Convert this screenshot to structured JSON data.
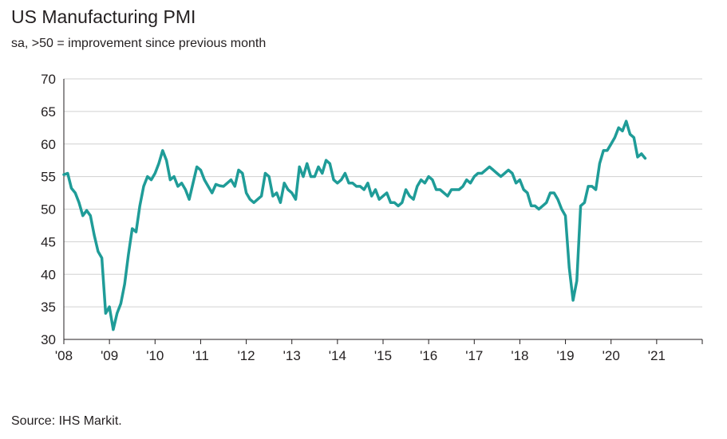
{
  "chart_data": {
    "type": "line",
    "title": "US Manufacturing PMI",
    "subtitle": "sa, >50 = improvement since previous month",
    "source": "Source: IHS Markit.",
    "xlabel": "",
    "ylabel": "",
    "ylim": [
      30,
      70
    ],
    "yticks": [
      30,
      35,
      40,
      45,
      50,
      55,
      60,
      65,
      70
    ],
    "xlim": [
      2008,
      2022
    ],
    "xticks": [
      {
        "value": 2008,
        "label": "'08"
      },
      {
        "value": 2009,
        "label": "'09"
      },
      {
        "value": 2010,
        "label": "'10"
      },
      {
        "value": 2011,
        "label": "'11"
      },
      {
        "value": 2012,
        "label": "'12"
      },
      {
        "value": 2013,
        "label": "'13"
      },
      {
        "value": 2014,
        "label": "'14"
      },
      {
        "value": 2015,
        "label": "'15"
      },
      {
        "value": 2016,
        "label": "'16"
      },
      {
        "value": 2017,
        "label": "'17"
      },
      {
        "value": 2018,
        "label": "'18"
      },
      {
        "value": 2019,
        "label": "'19"
      },
      {
        "value": 2020,
        "label": "'20"
      },
      {
        "value": 2021,
        "label": "'21"
      }
    ],
    "grid": true,
    "series": [
      {
        "name": "US Manufacturing PMI",
        "color": "#1f9c98",
        "start": 2008.0,
        "step_years": 0.08333,
        "values": [
          55.3,
          55.5,
          53.2,
          52.5,
          51.0,
          49.0,
          49.8,
          49.0,
          46.0,
          43.5,
          42.5,
          34.0,
          35.0,
          31.5,
          34.0,
          35.5,
          38.5,
          43.0,
          47.0,
          46.5,
          50.5,
          53.5,
          55.0,
          54.5,
          55.5,
          57.0,
          59.0,
          57.5,
          54.5,
          55.0,
          53.5,
          54.0,
          53.0,
          51.5,
          54.0,
          56.5,
          56.0,
          54.5,
          53.5,
          52.5,
          53.8,
          53.6,
          53.5,
          54.0,
          54.5,
          53.5,
          56.0,
          55.5,
          52.5,
          51.5,
          51.0,
          51.5,
          52.0,
          55.5,
          55.0,
          52.0,
          52.5,
          51.0,
          54.0,
          53.0,
          52.5,
          51.5,
          56.5,
          55.0,
          57.0,
          55.0,
          55.0,
          56.5,
          55.5,
          57.5,
          57.0,
          54.5,
          54.0,
          54.5,
          55.5,
          54.0,
          54.0,
          53.5,
          53.5,
          53.0,
          54.0,
          52.0,
          53.0,
          51.5,
          52.0,
          52.5,
          51.0,
          51.0,
          50.5,
          51.0,
          53.0,
          52.0,
          51.5,
          53.5,
          54.5,
          54.0,
          55.0,
          54.5,
          53.0,
          53.0,
          52.5,
          52.0,
          53.0,
          53.0,
          53.0,
          53.5,
          54.5,
          54.0,
          55.0,
          55.5,
          55.5,
          56.0,
          56.5,
          56.0,
          55.5,
          55.0,
          55.5,
          56.0,
          55.5,
          54.0,
          54.5,
          53.0,
          52.5,
          50.5,
          50.5,
          50.0,
          50.5,
          51.0,
          52.5,
          52.5,
          51.5,
          50.0,
          49.0,
          41.0,
          36.0,
          39.0,
          50.5,
          51.0,
          53.5,
          53.5,
          53.0,
          57.0,
          59.0,
          59.0,
          60.0,
          61.0,
          62.5,
          62.0,
          63.5,
          61.5,
          61.0,
          58.0,
          58.5,
          57.8
        ]
      }
    ]
  }
}
